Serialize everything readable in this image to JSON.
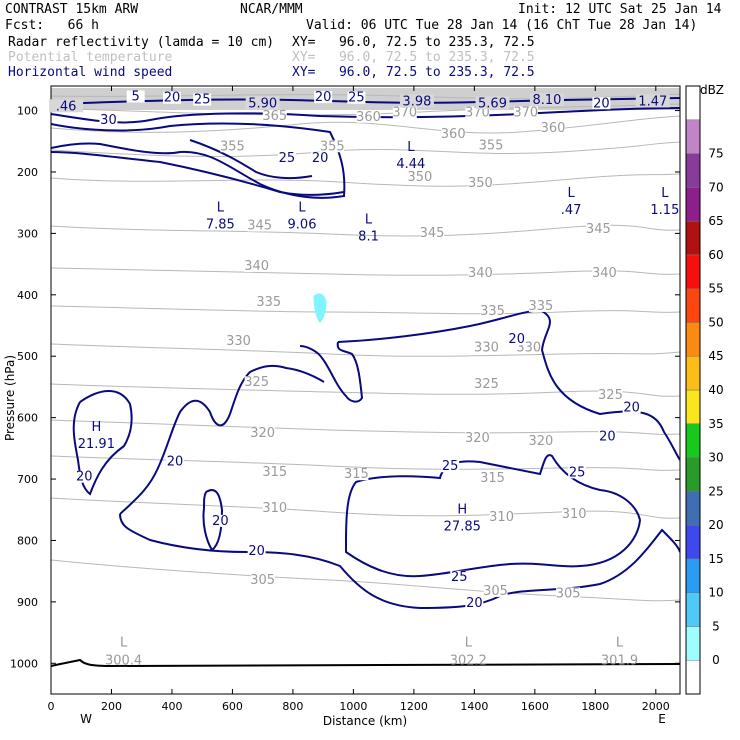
{
  "header": {
    "model": "CONTRAST 15km ARW",
    "org": "NCAR/MMM",
    "init": "Init: 12 UTC Sat 25 Jan 14",
    "fcst": "Fcst:   66 h",
    "valid": "Valid: 06 UTC Tue 28 Jan 14 (16 ChT Tue 28 Jan 14)",
    "fields": [
      {
        "name": "Radar reflectivity (lamda = 10 cm)",
        "xy": "XY=   96.0, 72.5 to 235.3, 72.5"
      },
      {
        "name": "Potential temperature",
        "xy": "XY=   96.0, 72.5 to 235.3, 72.5"
      },
      {
        "name": "Horizontal wind speed",
        "xy": "XY=   96.0, 72.5 to 235.3, 72.5"
      }
    ]
  },
  "chart_data": {
    "type": "cross-section contour",
    "xlabel": "Distance (km)",
    "ylabel": "Pressure (hPa)",
    "xlim": [
      0,
      2080
    ],
    "ylim": [
      1050,
      60
    ],
    "x_ticks": [
      0,
      200,
      400,
      600,
      800,
      1000,
      1200,
      1400,
      1600,
      1800,
      2000
    ],
    "y_ticks": [
      100,
      200,
      300,
      400,
      500,
      600,
      700,
      800,
      900,
      1000
    ],
    "west_label": "W",
    "east_label": "E",
    "colorbar": {
      "unit": "dBZ",
      "levels": [
        0,
        5,
        10,
        15,
        20,
        25,
        30,
        35,
        40,
        45,
        50,
        55,
        60,
        65,
        70,
        75
      ],
      "colors": [
        "#ffffff",
        "#9ffcff",
        "#4fc9f5",
        "#2a9df2",
        "#3d49ee",
        "#3f6fb3",
        "#2a9a2a",
        "#18c81c",
        "#fae61e",
        "#fbbd17",
        "#fb8a13",
        "#fb470f",
        "#f70f0f",
        "#b11111",
        "#8c1f8c",
        "#883b9a",
        "#c184c9",
        "#ffffff"
      ]
    },
    "theta_labels": [
      {
        "text": "370",
        "x": 1170,
        "p": 108
      },
      {
        "text": "370",
        "x": 1410,
        "p": 108
      },
      {
        "text": "370",
        "x": 1570,
        "p": 108
      },
      {
        "text": "365",
        "x": 740,
        "p": 114
      },
      {
        "text": "360",
        "x": 1050,
        "p": 115
      },
      {
        "text": "360",
        "x": 1330,
        "p": 143
      },
      {
        "text": "360",
        "x": 1660,
        "p": 133
      },
      {
        "text": "355",
        "x": 600,
        "p": 163
      },
      {
        "text": "355",
        "x": 930,
        "p": 163
      },
      {
        "text": "355",
        "x": 1455,
        "p": 162
      },
      {
        "text": "350",
        "x": 1220,
        "p": 213
      },
      {
        "text": "350",
        "x": 1420,
        "p": 223
      },
      {
        "text": "345",
        "x": 690,
        "p": 292
      },
      {
        "text": "345",
        "x": 1260,
        "p": 304
      },
      {
        "text": "345",
        "x": 1810,
        "p": 298
      },
      {
        "text": "340",
        "x": 680,
        "p": 358
      },
      {
        "text": "340",
        "x": 1420,
        "p": 369
      },
      {
        "text": "340",
        "x": 1830,
        "p": 369
      },
      {
        "text": "335",
        "x": 720,
        "p": 417
      },
      {
        "text": "335",
        "x": 1460,
        "p": 431
      },
      {
        "text": "335",
        "x": 1620,
        "p": 423
      },
      {
        "text": "330",
        "x": 620,
        "p": 480
      },
      {
        "text": "330",
        "x": 1440,
        "p": 491
      },
      {
        "text": "330",
        "x": 1580,
        "p": 491
      },
      {
        "text": "325",
        "x": 680,
        "p": 547
      },
      {
        "text": "325",
        "x": 1440,
        "p": 550
      },
      {
        "text": "325",
        "x": 1850,
        "p": 568
      },
      {
        "text": "320",
        "x": 700,
        "p": 630
      },
      {
        "text": "320",
        "x": 1410,
        "p": 638
      },
      {
        "text": "320",
        "x": 1620,
        "p": 643
      },
      {
        "text": "315",
        "x": 740,
        "p": 693
      },
      {
        "text": "315",
        "x": 1010,
        "p": 697
      },
      {
        "text": "315",
        "x": 1460,
        "p": 703
      },
      {
        "text": "310",
        "x": 740,
        "p": 752
      },
      {
        "text": "310",
        "x": 1490,
        "p": 767
      },
      {
        "text": "310",
        "x": 1730,
        "p": 762
      },
      {
        "text": "305",
        "x": 700,
        "p": 869
      },
      {
        "text": "305",
        "x": 1470,
        "p": 887
      },
      {
        "text": "305",
        "x": 1710,
        "p": 891
      }
    ],
    "theta_extrema": [
      {
        "kind": "L",
        "value": "300.4",
        "x": 240,
        "p": 1002
      },
      {
        "kind": "L",
        "value": "302.2",
        "x": 1380,
        "p": 1002
      },
      {
        "kind": "L",
        "value": "301.9",
        "x": 1880,
        "p": 1002
      }
    ],
    "wind_labels": [
      {
        "text": "5",
        "x": 280,
        "p": 82
      },
      {
        "text": "20",
        "x": 400,
        "p": 84
      },
      {
        "text": "25",
        "x": 500,
        "p": 87
      },
      {
        "text": "20",
        "x": 900,
        "p": 83
      },
      {
        "text": "25",
        "x": 1010,
        "p": 84
      },
      {
        "text": "20",
        "x": 1820,
        "p": 93
      },
      {
        "text": "30",
        "x": 190,
        "p": 120
      },
      {
        "text": "25",
        "x": 780,
        "p": 182
      },
      {
        "text": "20",
        "x": 890,
        "p": 182
      },
      {
        "text": "20",
        "x": 1540,
        "p": 477
      },
      {
        "text": "20",
        "x": 1920,
        "p": 588
      },
      {
        "text": "20",
        "x": 1840,
        "p": 636
      },
      {
        "text": "25",
        "x": 1320,
        "p": 684
      },
      {
        "text": "25",
        "x": 1740,
        "p": 694
      },
      {
        "text": "20",
        "x": 410,
        "p": 676
      },
      {
        "text": "20",
        "x": 110,
        "p": 701
      },
      {
        "text": "20",
        "x": 560,
        "p": 773
      },
      {
        "text": "20",
        "x": 680,
        "p": 822
      },
      {
        "text": "25",
        "x": 1350,
        "p": 864
      },
      {
        "text": "20",
        "x": 1400,
        "p": 907
      }
    ],
    "wind_extrema": [
      {
        "kind": "L",
        "value": ".46",
        "x": 50,
        "p": 98
      },
      {
        "kind": "L",
        "value": "5.90",
        "x": 700,
        "p": 93
      },
      {
        "kind": "L",
        "value": "3.98",
        "x": 1210,
        "p": 90
      },
      {
        "kind": "L",
        "value": "5.69",
        "x": 1460,
        "p": 93
      },
      {
        "kind": "L",
        "value": "8.10",
        "x": 1640,
        "p": 88
      },
      {
        "kind": "L",
        "value": "1.47",
        "x": 1990,
        "p": 90
      },
      {
        "kind": "L",
        "value": "4.44",
        "x": 1190,
        "p": 192
      },
      {
        "kind": "L",
        "value": "7.85",
        "x": 560,
        "p": 290
      },
      {
        "kind": "L",
        "value": "9.06",
        "x": 830,
        "p": 290
      },
      {
        "kind": "L",
        "value": "8.1",
        "x": 1050,
        "p": 310
      },
      {
        "kind": "L",
        "value": ".47",
        "x": 1720,
        "p": 267
      },
      {
        "kind": "L",
        "value": "1.15",
        "x": 2030,
        "p": 267
      },
      {
        "kind": "H",
        "value": "21.91",
        "x": 150,
        "p": 648
      },
      {
        "kind": "H",
        "value": "27.85",
        "x": 1360,
        "p": 782
      }
    ],
    "reflectivity_area": {
      "level": "5-10 dBZ",
      "x": [
        880,
        920
      ],
      "p": [
        385,
        430
      ]
    }
  }
}
